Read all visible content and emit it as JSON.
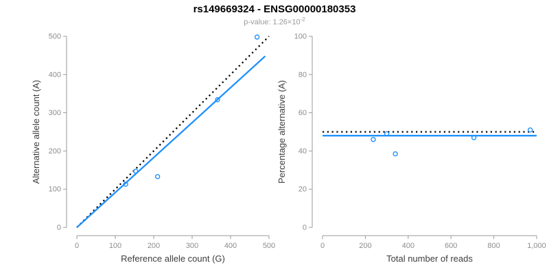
{
  "header": {
    "title": "rs149669324 - ENSG00000180353",
    "subtitle_prefix": "p-value: 1.26×10",
    "subtitle_exponent": "-2"
  },
  "colors": {
    "accent_blue": "#1E90FF",
    "line_black": "#000000",
    "axis_line": "#999999",
    "tick_label": "#8c8c8c",
    "axis_label": "#3d3d3d",
    "title": "#000000",
    "subtitle": "#9a9a9a"
  },
  "chart_data": [
    {
      "type": "scatter",
      "name": "allele-counts",
      "xlabel": "Reference allele count (G)",
      "ylabel": "Alternative allele count (A)",
      "xlim": [
        0,
        500
      ],
      "ylim": [
        0,
        500
      ],
      "xticks": [
        0,
        100,
        200,
        300,
        400,
        500
      ],
      "xtick_labels": [
        "0",
        "100",
        "200",
        "300",
        "400",
        "500"
      ],
      "yticks": [
        0,
        100,
        200,
        300,
        400,
        500
      ],
      "ytick_labels": [
        "0",
        "100",
        "200",
        "300",
        "400",
        "500"
      ],
      "grid": false,
      "legend": "none",
      "point_color": "#1E90FF",
      "points": [
        {
          "x": 127,
          "y": 113
        },
        {
          "x": 153,
          "y": 147
        },
        {
          "x": 210,
          "y": 133
        },
        {
          "x": 366,
          "y": 334
        },
        {
          "x": 469,
          "y": 498
        }
      ],
      "lines": [
        {
          "name": "identity-line",
          "style": "dotted",
          "color": "#000000",
          "x1": 0,
          "y1": 0,
          "x2": 500,
          "y2": 500
        },
        {
          "name": "regression-line",
          "style": "solid",
          "color": "#1E90FF",
          "x1": 0,
          "y1": 0,
          "x2": 490,
          "y2": 448
        }
      ]
    },
    {
      "type": "scatter",
      "name": "percentage-alternative",
      "xlabel": "Total number of reads",
      "ylabel": "Percentage alternative (A)",
      "xlim": [
        0,
        1000
      ],
      "ylim": [
        0,
        100
      ],
      "xticks": [
        0,
        200,
        400,
        600,
        800,
        1000
      ],
      "xtick_labels": [
        "0",
        "200",
        "400",
        "600",
        "800",
        "1,000"
      ],
      "yticks": [
        0,
        20,
        40,
        60,
        80,
        100
      ],
      "ytick_labels": [
        "0",
        "20",
        "40",
        "60",
        "80",
        "100"
      ],
      "grid": false,
      "legend": "none",
      "point_color": "#1E90FF",
      "points": [
        {
          "x": 237,
          "y": 46
        },
        {
          "x": 300,
          "y": 49
        },
        {
          "x": 340,
          "y": 38.5
        },
        {
          "x": 707,
          "y": 47
        },
        {
          "x": 970,
          "y": 51
        }
      ],
      "lines": [
        {
          "name": "identity-line",
          "style": "dotted",
          "color": "#000000",
          "x1": 0,
          "y1": 50,
          "x2": 1000,
          "y2": 50
        },
        {
          "name": "regression-line",
          "style": "solid",
          "color": "#1E90FF",
          "x1": 0,
          "y1": 48,
          "x2": 1000,
          "y2": 48
        }
      ]
    }
  ]
}
